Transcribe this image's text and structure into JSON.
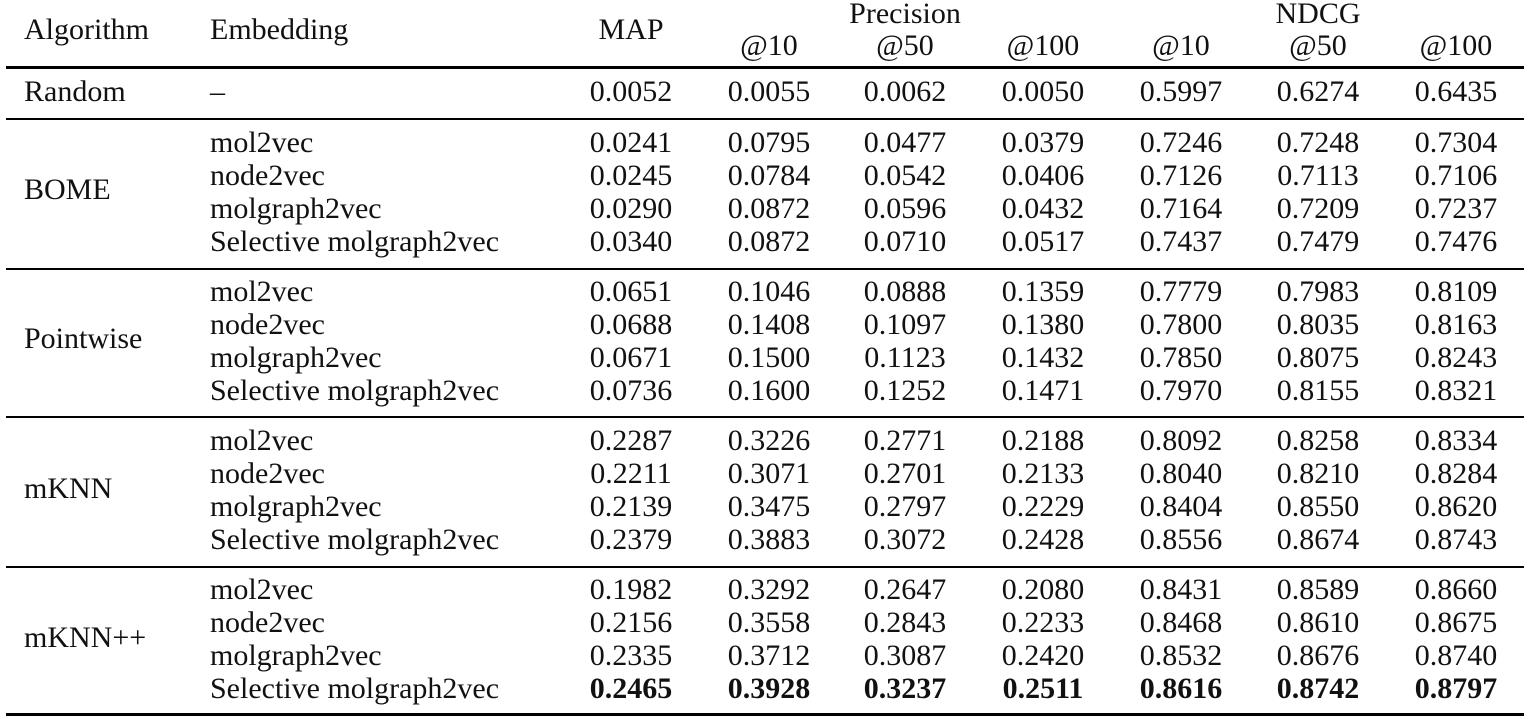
{
  "table": {
    "header": {
      "algorithm": "Algorithm",
      "embedding": "Embedding",
      "map": "MAP",
      "precision_group": "Precision",
      "ndcg_group": "NDCG",
      "sub_cols": [
        "@10",
        "@50",
        "@100",
        "@10",
        "@50",
        "@100"
      ]
    },
    "random": {
      "algorithm": "Random",
      "embedding": "–",
      "values": [
        "0.0052",
        "0.0055",
        "0.0062",
        "0.0050",
        "0.5997",
        "0.6274",
        "0.6435"
      ]
    },
    "groups": [
      {
        "algorithm": "BOME",
        "rows": [
          {
            "embedding": "mol2vec",
            "values": [
              "0.0241",
              "0.0795",
              "0.0477",
              "0.0379",
              "0.7246",
              "0.7248",
              "0.7304"
            ]
          },
          {
            "embedding": "node2vec",
            "values": [
              "0.0245",
              "0.0784",
              "0.0542",
              "0.0406",
              "0.7126",
              "0.7113",
              "0.7106"
            ]
          },
          {
            "embedding": "molgraph2vec",
            "values": [
              "0.0290",
              "0.0872",
              "0.0596",
              "0.0432",
              "0.7164",
              "0.7209",
              "0.7237"
            ]
          },
          {
            "embedding": "Selective molgraph2vec",
            "values": [
              "0.0340",
              "0.0872",
              "0.0710",
              "0.0517",
              "0.7437",
              "0.7479",
              "0.7476"
            ]
          }
        ]
      },
      {
        "algorithm": "Pointwise",
        "rows": [
          {
            "embedding": "mol2vec",
            "values": [
              "0.0651",
              "0.1046",
              "0.0888",
              "0.1359",
              "0.7779",
              "0.7983",
              "0.8109"
            ]
          },
          {
            "embedding": "node2vec",
            "values": [
              "0.0688",
              "0.1408",
              "0.1097",
              "0.1380",
              "0.7800",
              "0.8035",
              "0.8163"
            ]
          },
          {
            "embedding": "molgraph2vec",
            "values": [
              "0.0671",
              "0.1500",
              "0.1123",
              "0.1432",
              "0.7850",
              "0.8075",
              "0.8243"
            ]
          },
          {
            "embedding": "Selective molgraph2vec",
            "values": [
              "0.0736",
              "0.1600",
              "0.1252",
              "0.1471",
              "0.7970",
              "0.8155",
              "0.8321"
            ]
          }
        ]
      },
      {
        "algorithm": "mKNN",
        "rows": [
          {
            "embedding": "mol2vec",
            "values": [
              "0.2287",
              "0.3226",
              "0.2771",
              "0.2188",
              "0.8092",
              "0.8258",
              "0.8334"
            ]
          },
          {
            "embedding": "node2vec",
            "values": [
              "0.2211",
              "0.3071",
              "0.2701",
              "0.2133",
              "0.8040",
              "0.8210",
              "0.8284"
            ]
          },
          {
            "embedding": "molgraph2vec",
            "values": [
              "0.2139",
              "0.3475",
              "0.2797",
              "0.2229",
              "0.8404",
              "0.8550",
              "0.8620"
            ]
          },
          {
            "embedding": "Selective molgraph2vec",
            "values": [
              "0.2379",
              "0.3883",
              "0.3072",
              "0.2428",
              "0.8556",
              "0.8674",
              "0.8743"
            ]
          }
        ]
      },
      {
        "algorithm": "mKNN++",
        "rows": [
          {
            "embedding": "mol2vec",
            "values": [
              "0.1982",
              "0.3292",
              "0.2647",
              "0.2080",
              "0.8431",
              "0.8589",
              "0.8660"
            ]
          },
          {
            "embedding": "node2vec",
            "values": [
              "0.2156",
              "0.3558",
              "0.2843",
              "0.2233",
              "0.8468",
              "0.8610",
              "0.8675"
            ]
          },
          {
            "embedding": "molgraph2vec",
            "values": [
              "0.2335",
              "0.3712",
              "0.3087",
              "0.2420",
              "0.8532",
              "0.8676",
              "0.8740"
            ]
          },
          {
            "embedding": "Selective molgraph2vec",
            "values": [
              "0.2465",
              "0.3928",
              "0.3237",
              "0.2511",
              "0.8616",
              "0.8742",
              "0.8797"
            ],
            "bold": true
          }
        ]
      }
    ]
  }
}
